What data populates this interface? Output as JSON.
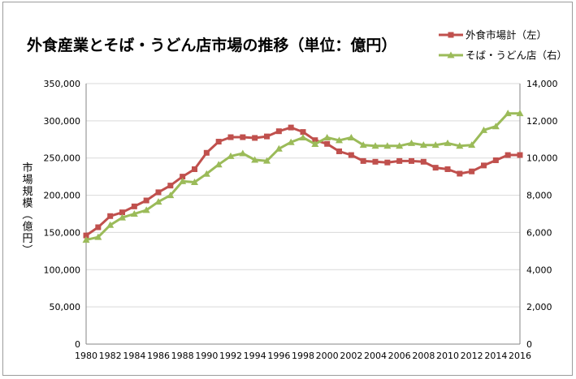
{
  "chart_data": {
    "type": "line",
    "title": "外食産業とそば・うどん店市場の推移（単位：億円）",
    "ylabel": "市場規模（億円）",
    "y_left": {
      "range": [
        0,
        350000
      ],
      "ticks": [
        "0",
        "50,000",
        "100,000",
        "150,000",
        "200,000",
        "250,000",
        "300,000",
        "350,000"
      ]
    },
    "y_right": {
      "range": [
        0,
        14000
      ],
      "ticks": [
        "0",
        "2,000",
        "4,000",
        "6,000",
        "8,000",
        "10,000",
        "12,000",
        "14,000"
      ]
    },
    "x_tick_labels": [
      "1980",
      "1982",
      "1984",
      "1986",
      "1988",
      "1990",
      "1992",
      "1994",
      "1996",
      "1998",
      "2000",
      "2002",
      "2004",
      "2006",
      "2008",
      "2010",
      "2012",
      "2014",
      "2016"
    ],
    "x": [
      1980,
      1981,
      1982,
      1983,
      1984,
      1985,
      1986,
      1987,
      1988,
      1989,
      1990,
      1991,
      1992,
      1993,
      1994,
      1995,
      1996,
      1997,
      1998,
      1999,
      2000,
      2001,
      2002,
      2003,
      2004,
      2005,
      2006,
      2007,
      2008,
      2009,
      2010,
      2011,
      2012,
      2013,
      2014,
      2015,
      2016
    ],
    "grid": true,
    "legend_position": "top-right",
    "series": [
      {
        "name": "外食市場計（左）",
        "axis": "left",
        "color": "#c0504d",
        "marker": "square",
        "values": [
          146000,
          157000,
          172000,
          177000,
          185000,
          193000,
          204000,
          213000,
          225000,
          235000,
          257000,
          272000,
          278000,
          278000,
          277000,
          279000,
          286000,
          291000,
          285000,
          274000,
          269000,
          259000,
          254000,
          246000,
          245000,
          244000,
          246000,
          246000,
          245000,
          237000,
          235000,
          229000,
          232000,
          240000,
          247000,
          254000,
          254000
        ]
      },
      {
        "name": "そば・うどん店（右）",
        "axis": "right",
        "color": "#9bbb59",
        "marker": "triangle",
        "values": [
          5600,
          5750,
          6400,
          6800,
          7000,
          7200,
          7650,
          8000,
          8750,
          8700,
          9150,
          9650,
          10100,
          10250,
          9900,
          9850,
          10500,
          10850,
          11100,
          10750,
          11100,
          10950,
          11100,
          10700,
          10650,
          10650,
          10650,
          10800,
          10700,
          10700,
          10800,
          10650,
          10700,
          11500,
          11700,
          12400,
          12400
        ]
      }
    ]
  }
}
